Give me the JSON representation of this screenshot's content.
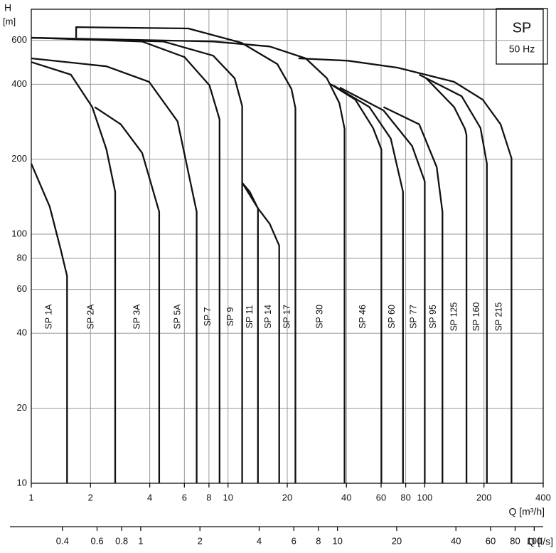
{
  "chart_data": {
    "type": "line",
    "legend_title": "SP",
    "legend_subtitle": "50 Hz",
    "y_label": "H",
    "y_unit": "[m]",
    "x_label": "Q [m³/h]",
    "x2_label": "Q [l/s]",
    "xscale": "log",
    "yscale": "log",
    "grid": true,
    "color": "#111111",
    "xlim": [
      1,
      400
    ],
    "xticks": [
      1,
      2,
      4,
      6,
      8,
      10,
      20,
      40,
      60,
      80,
      100,
      200,
      400
    ],
    "x2lim": [
      0.2778,
      111.1
    ],
    "x2ticks": [
      0.4,
      0.6,
      0.8,
      1,
      2,
      4,
      6,
      8,
      10,
      20,
      40,
      60,
      80,
      100
    ],
    "ylim": [
      10,
      800
    ],
    "yticks": [
      10,
      20,
      40,
      60,
      80,
      100,
      200,
      400,
      600
    ],
    "series": [
      {
        "name": "SP 1A",
        "x": [
          1,
          1.24,
          1.41,
          1.52,
          1.52
        ],
        "values": [
          192,
          129,
          87,
          68,
          10
        ]
      },
      {
        "name": "SP 2A",
        "x": [
          1,
          1.59,
          2.04,
          2.41,
          2.67,
          2.67
        ],
        "values": [
          491,
          437,
          324,
          219,
          148,
          10
        ]
      },
      {
        "name": "SP 3A",
        "x": [
          2.1,
          2.85,
          3.66,
          4.47,
          4.47
        ],
        "values": [
          324,
          276,
          212,
          123,
          10
        ]
      },
      {
        "name": "SP 5A",
        "x": [
          1,
          2.41,
          3.97,
          5.54,
          6.93,
          6.93
        ],
        "values": [
          508,
          472,
          409,
          284,
          123,
          10
        ]
      },
      {
        "name": "SP 7",
        "x": [
          1,
          3.66,
          6.01,
          8.05,
          9.06,
          9.06
        ],
        "values": [
          615,
          594,
          514,
          396,
          289,
          10
        ]
      },
      {
        "name": "SP 9",
        "x": [
          1,
          4.69,
          8.4,
          10.8,
          11.8,
          11.8
        ],
        "values": [
          615,
          594,
          521,
          423,
          327,
          10
        ]
      },
      {
        "name": "SP 11",
        "x": [
          11.8,
          12.9,
          14.2,
          14.2
        ],
        "values": [
          161,
          148,
          127,
          10
        ]
      },
      {
        "name": "SP 14",
        "x": [
          11.8,
          14.2,
          16.3,
          18.2,
          18.2
        ],
        "values": [
          161,
          127,
          110,
          90,
          10
        ]
      },
      {
        "name": "SP 17",
        "x": [
          1.69,
          1.69,
          6.28,
          11.7,
          17.8,
          21.0,
          22.0,
          22.0
        ],
        "values": [
          615,
          678,
          670,
          587,
          482,
          383,
          321,
          10
        ]
      },
      {
        "name": "SP 30",
        "x": [
          1,
          8.4,
          16.3,
          24.8,
          31.8,
          36.8,
          39.1,
          39.1
        ],
        "values": [
          615,
          594,
          567,
          508,
          423,
          336,
          265,
          10
        ]
      },
      {
        "name": "SP 46",
        "x": [
          33.1,
          44.4,
          54.6,
          60.2,
          60.2
        ],
        "values": [
          401,
          347,
          267,
          219,
          10
        ]
      },
      {
        "name": "SP 60",
        "x": [
          34.5,
          52.3,
          67.2,
          77.5,
          77.5
        ],
        "values": [
          395,
          324,
          242,
          148,
          10
        ]
      },
      {
        "name": "SP 77",
        "x": [
          37.0,
          61.7,
          86.2,
          100,
          100
        ],
        "values": [
          388,
          314,
          226,
          163,
          10
        ]
      },
      {
        "name": "SP 95",
        "x": [
          61.7,
          93.7,
          115,
          123,
          123
        ],
        "values": [
          324,
          276,
          186,
          123,
          10
        ]
      },
      {
        "name": "SP 125",
        "x": [
          101.7,
          141,
          160,
          163,
          163
        ],
        "values": [
          423,
          324,
          265,
          250,
          10
        ]
      },
      {
        "name": "SP 160",
        "x": [
          93.7,
          154,
          192,
          207,
          207
        ],
        "values": [
          437,
          358,
          267,
          192,
          10
        ]
      },
      {
        "name": "SP 215",
        "x": [
          22.8,
          40.7,
          72.9,
          141,
          197,
          243,
          276,
          276
        ],
        "values": [
          508,
          497,
          466,
          409,
          347,
          276,
          202,
          10
        ]
      }
    ]
  }
}
